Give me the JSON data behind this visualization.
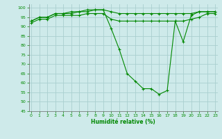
{
  "xlabel": "Humidité relative (%)",
  "background_color": "#ceeaea",
  "grid_color": "#aacfcf",
  "line_color": "#008800",
  "ylim": [
    45,
    102
  ],
  "xlim": [
    -0.3,
    23.3
  ],
  "yticks": [
    45,
    50,
    55,
    60,
    65,
    70,
    75,
    80,
    85,
    90,
    95,
    100
  ],
  "xticks": [
    0,
    1,
    2,
    3,
    4,
    5,
    6,
    7,
    8,
    9,
    10,
    11,
    12,
    13,
    14,
    15,
    16,
    17,
    18,
    19,
    20,
    21,
    22,
    23
  ],
  "series": [
    {
      "x": [
        0,
        1,
        2,
        3,
        4,
        5,
        6,
        7,
        8,
        9,
        10,
        11,
        12,
        13,
        14,
        15,
        16,
        17,
        18,
        19,
        20,
        21,
        22,
        23
      ],
      "y": [
        93,
        95,
        95,
        97,
        97,
        98,
        98,
        99,
        99,
        99,
        89,
        78,
        65,
        61,
        57,
        57,
        54,
        56,
        93,
        82,
        96,
        98,
        98,
        98
      ]
    },
    {
      "x": [
        0,
        1,
        2,
        3,
        4,
        5,
        6,
        7,
        8,
        9,
        10,
        11,
        12,
        13,
        14,
        15,
        16,
        17,
        18,
        19,
        20,
        21,
        22,
        23
      ],
      "y": [
        93,
        95,
        95,
        97,
        97,
        97,
        98,
        98,
        99,
        99,
        98,
        97,
        97,
        97,
        97,
        97,
        97,
        97,
        97,
        97,
        97,
        98,
        98,
        98
      ]
    },
    {
      "x": [
        0,
        1,
        2,
        3,
        4,
        5,
        6,
        7,
        8,
        9,
        10,
        11,
        12,
        13,
        14,
        15,
        16,
        17,
        18,
        19,
        20,
        21,
        22,
        23
      ],
      "y": [
        92,
        94,
        94,
        96,
        96,
        96,
        96,
        97,
        97,
        97,
        94,
        93,
        93,
        93,
        93,
        93,
        93,
        93,
        93,
        93,
        94,
        95,
        97,
        97
      ]
    }
  ]
}
